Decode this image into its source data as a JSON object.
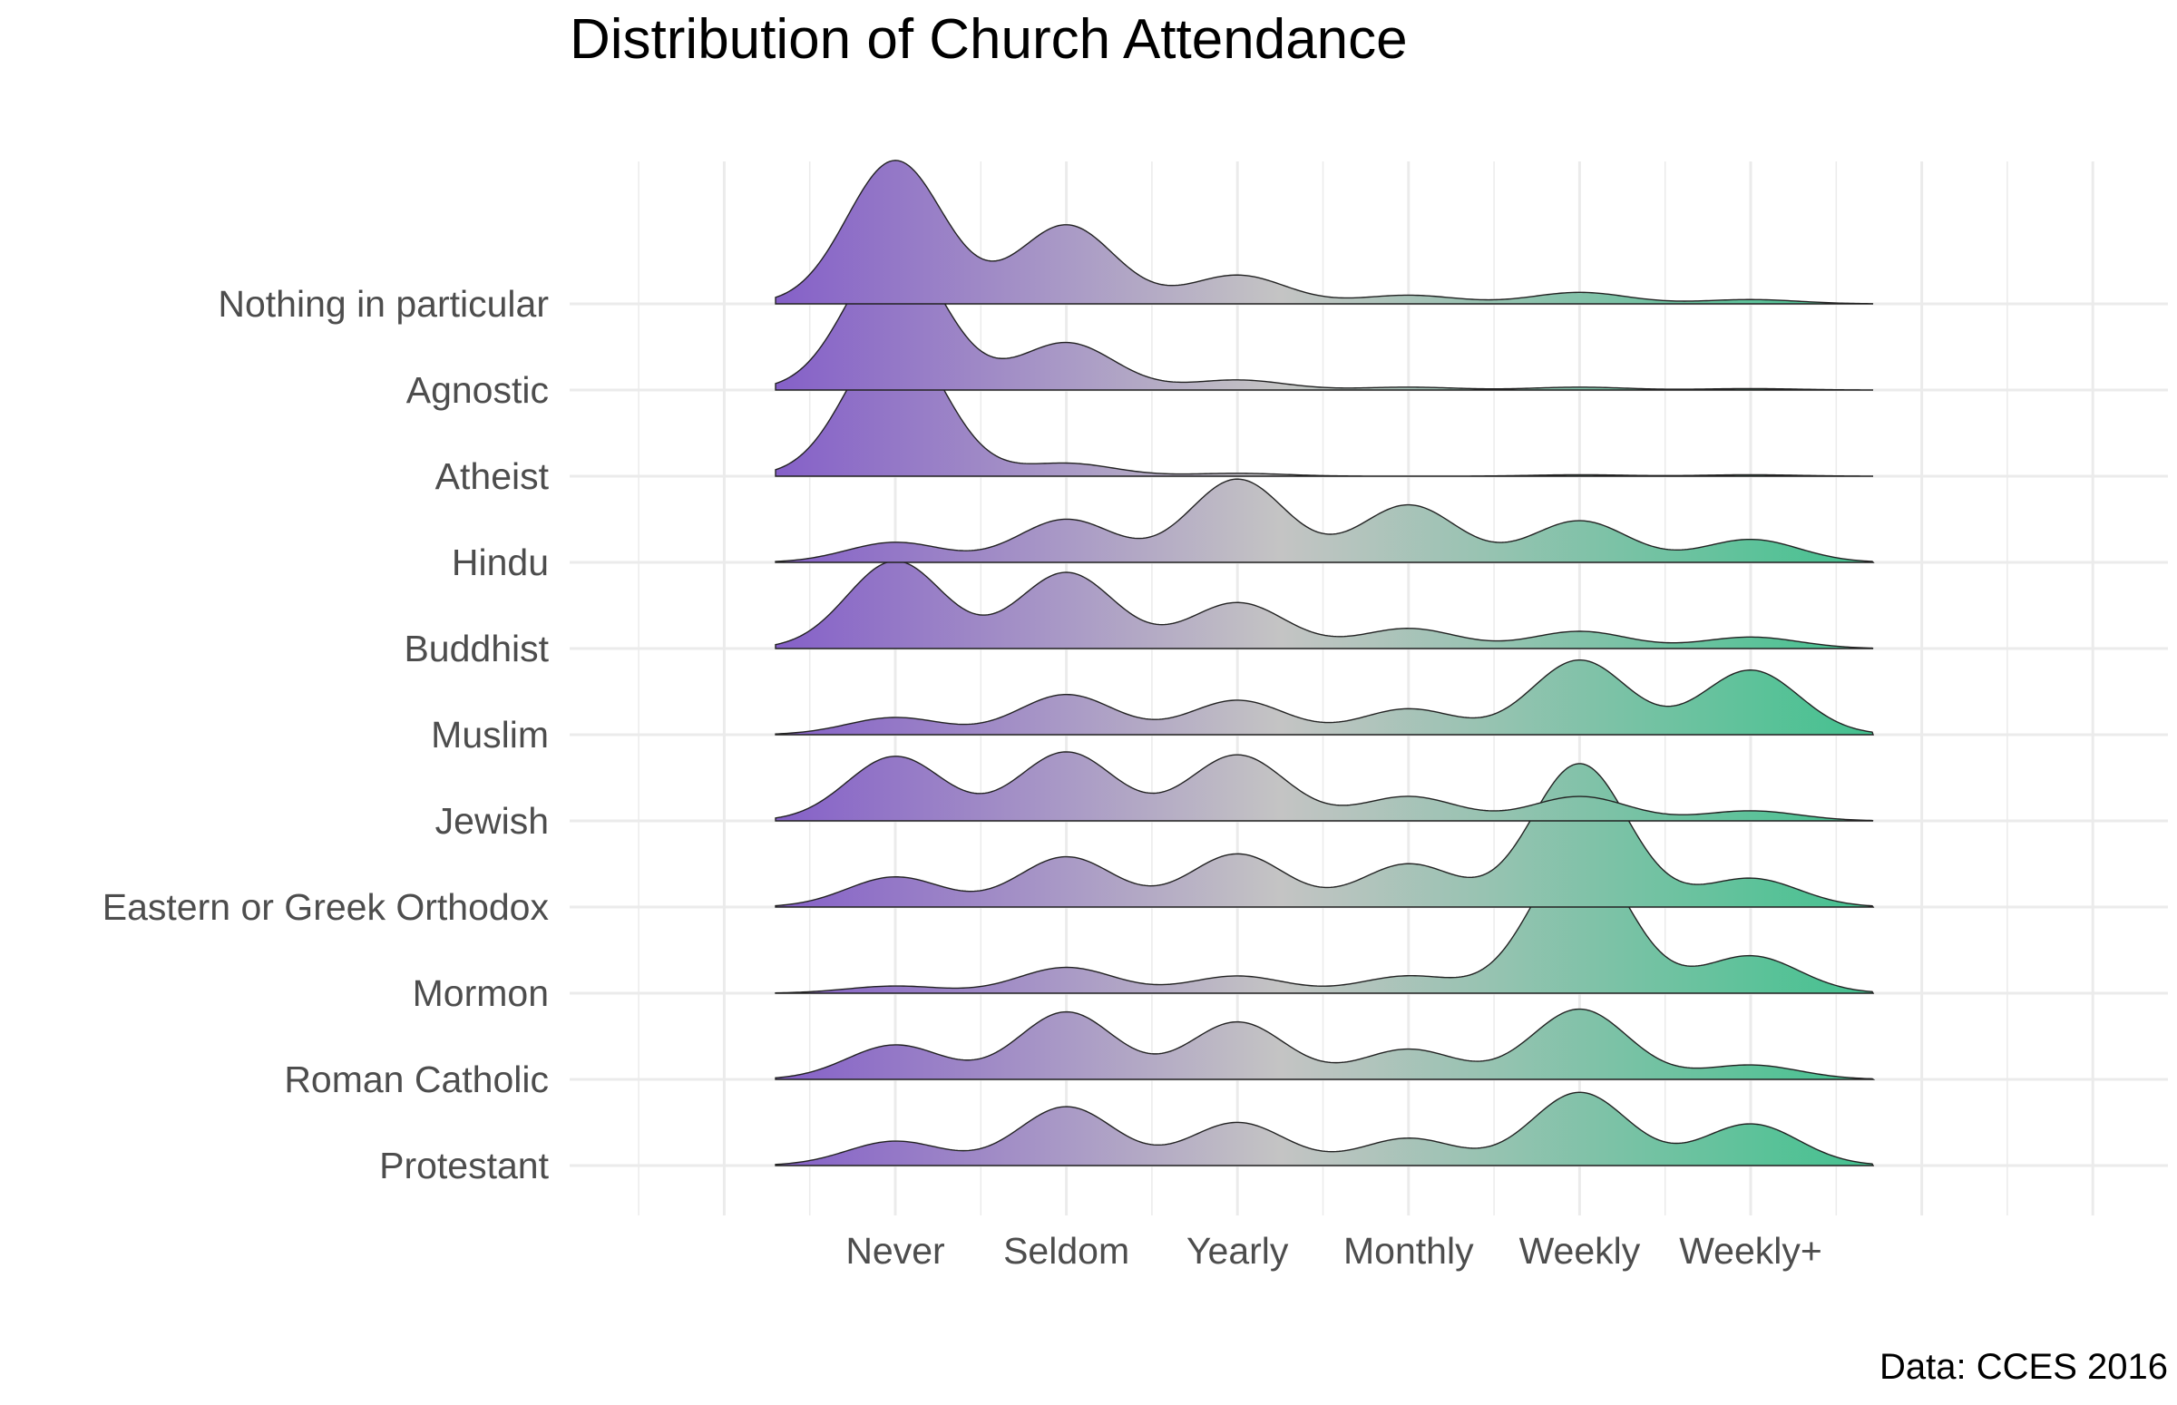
{
  "chart_data": {
    "type": "ridgeline",
    "title": "Distribution of Church Attendance",
    "caption": "Data: CCES 2016",
    "xlabel": "",
    "ylabel": "",
    "categories": [
      "Never",
      "Seldom",
      "Yearly",
      "Monthly",
      "Weekly",
      "Weekly+"
    ],
    "grid": true,
    "fill_gradient": {
      "start": "#8560c8",
      "mid": "#c4c4c4",
      "end": "#43c18f"
    },
    "outline_color": "#222222",
    "series": [
      {
        "name": "Nothing in particular",
        "values": [
          1.0,
          0.55,
          0.2,
          0.06,
          0.08,
          0.03
        ]
      },
      {
        "name": "Agnostic",
        "values": [
          1.0,
          0.33,
          0.07,
          0.02,
          0.02,
          0.01
        ]
      },
      {
        "name": "Atheist",
        "values": [
          1.0,
          0.09,
          0.02,
          0.0,
          0.01,
          0.01
        ]
      },
      {
        "name": "Hindu",
        "values": [
          0.14,
          0.3,
          0.58,
          0.4,
          0.29,
          0.16
        ]
      },
      {
        "name": "Buddhist",
        "values": [
          0.61,
          0.53,
          0.32,
          0.14,
          0.12,
          0.08
        ]
      },
      {
        "name": "Muslim",
        "values": [
          0.12,
          0.28,
          0.24,
          0.18,
          0.52,
          0.45
        ]
      },
      {
        "name": "Jewish",
        "values": [
          0.45,
          0.48,
          0.46,
          0.17,
          0.17,
          0.07
        ]
      },
      {
        "name": "Eastern or Greek Orthodox",
        "values": [
          0.21,
          0.35,
          0.37,
          0.3,
          1.0,
          0.2
        ]
      },
      {
        "name": "Mormon",
        "values": [
          0.05,
          0.18,
          0.12,
          0.12,
          1.0,
          0.26
        ]
      },
      {
        "name": "Roman Catholic",
        "values": [
          0.24,
          0.47,
          0.4,
          0.21,
          0.49,
          0.1
        ]
      },
      {
        "name": "Protestant",
        "values": [
          0.17,
          0.41,
          0.3,
          0.19,
          0.51,
          0.29
        ]
      }
    ]
  }
}
